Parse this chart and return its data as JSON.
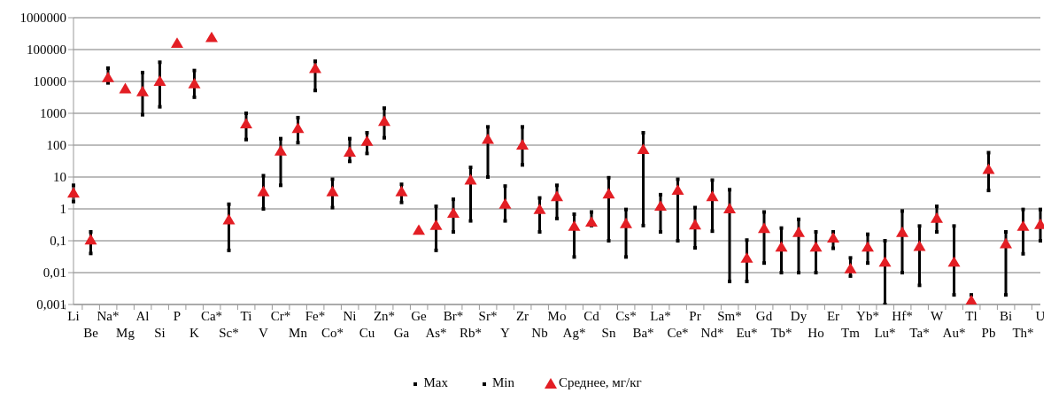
{
  "chart_data": {
    "type": "scatter",
    "log": "y",
    "grid": "y",
    "legend": "bottom",
    "categories": [
      "Li",
      "Be",
      "Na*",
      "Mg",
      "Al",
      "Si",
      "P",
      "K",
      "Ca*",
      "Sc*",
      "Ti",
      "V",
      "Cr*",
      "Mn",
      "Fe*",
      "Co*",
      "Ni",
      "Cu",
      "Zn*",
      "Ga",
      "Ge",
      "As*",
      "Br*",
      "Rb*",
      "Sr*",
      "Y",
      "Zr",
      "Nb",
      "Mo",
      "Ag*",
      "Cd",
      "Sn",
      "Cs*",
      "Ba*",
      "La*",
      "Ce*",
      "Pr",
      "Nd*",
      "Sm*",
      "Eu*",
      "Gd",
      "Tb*",
      "Dy",
      "Ho",
      "Er",
      "Tm",
      "Yb*",
      "Lu*",
      "Hf*",
      "Ta*",
      "W",
      "Au*",
      "Tl",
      "Pb",
      "Bi",
      "Th*",
      "U"
    ],
    "ylim": [
      0.001,
      1000000
    ],
    "yticks": [
      {
        "value": 0.001,
        "label": "0,001"
      },
      {
        "value": 0.01,
        "label": "0,01"
      },
      {
        "value": 0.1,
        "label": "0,1"
      },
      1,
      10,
      100,
      1000,
      10000,
      100000,
      1000000
    ],
    "series": [
      {
        "name": "Max",
        "color": "#000000",
        "values": [
          5.5,
          0.19,
          26000,
          null,
          19000,
          40000,
          null,
          22000,
          null,
          1.4,
          1000,
          11,
          160,
          730,
          43000,
          8.5,
          160,
          245,
          1450,
          5.9,
          null,
          1.2,
          2,
          20,
          375,
          5.2,
          375,
          2.2,
          5.5,
          0.68,
          0.8,
          9.5,
          0.96,
          245,
          2.8,
          8.5,
          1.1,
          8,
          4,
          0.105,
          0.8,
          0.25,
          0.47,
          0.19,
          0.19,
          0.029,
          0.16,
          0.1,
          0.86,
          0.29,
          1.2,
          0.29,
          0.002,
          58,
          0.19,
          0.96,
          0.96
        ]
      },
      {
        "name": "Min",
        "color": "#000000",
        "values": [
          1.7,
          0.04,
          9000,
          null,
          900,
          1600,
          null,
          3200,
          null,
          0.05,
          150,
          1,
          5.5,
          120,
          5200,
          1.1,
          31,
          55,
          170,
          1.6,
          null,
          0.05,
          0.19,
          0.42,
          10,
          0.42,
          24,
          0.19,
          0.5,
          0.031,
          0.3,
          0.1,
          0.031,
          0.3,
          0.19,
          0.1,
          0.06,
          0.2,
          0.0053,
          0.0053,
          0.02,
          0.01,
          0.01,
          0.01,
          0.058,
          0.0078,
          0.02,
          0.001,
          0.01,
          0.004,
          0.19,
          0.002,
          null,
          3.8,
          0.002,
          0.039,
          0.1
        ]
      },
      {
        "name": "Среднее, мг/кг",
        "marker": "triangle",
        "color": "#e31e24",
        "values": [
          3.1,
          0.105,
          13000,
          5800,
          4700,
          10000,
          155000,
          8300,
          235000,
          0.45,
          460,
          3.4,
          65,
          330,
          25000,
          3.4,
          60,
          130,
          550,
          3.4,
          0.21,
          0.3,
          0.72,
          8,
          150,
          1.4,
          100,
          0.94,
          2.4,
          0.28,
          0.38,
          2.9,
          0.34,
          72,
          1.2,
          3.8,
          0.31,
          2.4,
          1,
          0.028,
          0.24,
          0.062,
          0.18,
          0.062,
          0.12,
          0.013,
          0.062,
          0.021,
          0.18,
          0.066,
          0.5,
          0.021,
          0.0013,
          17,
          0.08,
          0.28,
          0.32
        ]
      }
    ]
  }
}
